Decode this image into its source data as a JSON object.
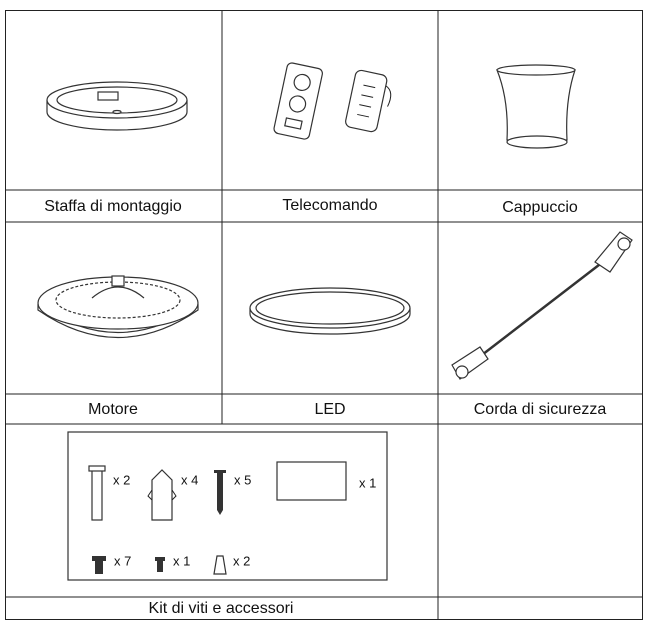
{
  "table": {
    "rows": [
      {
        "cells": [
          {
            "label": "Staffa di montaggio"
          },
          {
            "label": "Telecomando"
          },
          {
            "label": "Cappuccio"
          }
        ]
      },
      {
        "cells": [
          {
            "label": "Motore"
          },
          {
            "label": "LED"
          },
          {
            "label": "Corda di sicurezza"
          }
        ]
      }
    ]
  },
  "kit": {
    "label": "Kit di viti e accessori",
    "items": [
      {
        "quantity": "x 2"
      },
      {
        "quantity": "x 4"
      },
      {
        "quantity": "x 5"
      },
      {
        "quantity": "x 1"
      },
      {
        "quantity": "x 7"
      },
      {
        "quantity": "x 1"
      },
      {
        "quantity": "x 2"
      }
    ]
  }
}
